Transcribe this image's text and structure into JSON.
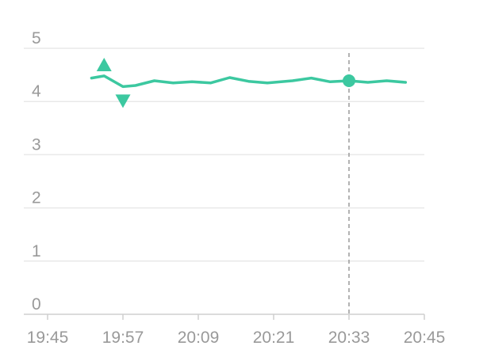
{
  "chart_data": {
    "type": "line",
    "title": "",
    "xlabel": "",
    "ylabel": "",
    "x_ticks": [
      "19:45",
      "19:57",
      "20:09",
      "20:21",
      "20:33",
      "20:45"
    ],
    "y_ticks": [
      "0",
      "1",
      "2",
      "3",
      "4",
      "5"
    ],
    "ylim": [
      0,
      5
    ],
    "grid": "horizontal",
    "line_color": "#3cc8a0",
    "crosshair_color": "#9a9a9a",
    "series": [
      {
        "x": [
          "19:52",
          "19:54",
          "19:57",
          "19:59",
          "20:02",
          "20:05",
          "20:08",
          "20:11",
          "20:14",
          "20:17",
          "20:20",
          "20:24",
          "20:27",
          "20:30",
          "20:33",
          "20:36",
          "20:39",
          "20:42"
        ],
        "values": [
          4.44,
          4.48,
          4.28,
          4.3,
          4.39,
          4.35,
          4.37,
          4.35,
          4.45,
          4.38,
          4.35,
          4.39,
          4.44,
          4.37,
          4.39,
          4.36,
          4.39,
          4.36
        ]
      }
    ],
    "markers": [
      {
        "type": "max",
        "x": "19:54",
        "value": 4.48,
        "symbol": "triangle-up"
      },
      {
        "type": "min",
        "x": "19:57",
        "value": 4.28,
        "symbol": "triangle-down"
      }
    ],
    "hover": {
      "x": "20:33",
      "value": 4.39
    }
  }
}
